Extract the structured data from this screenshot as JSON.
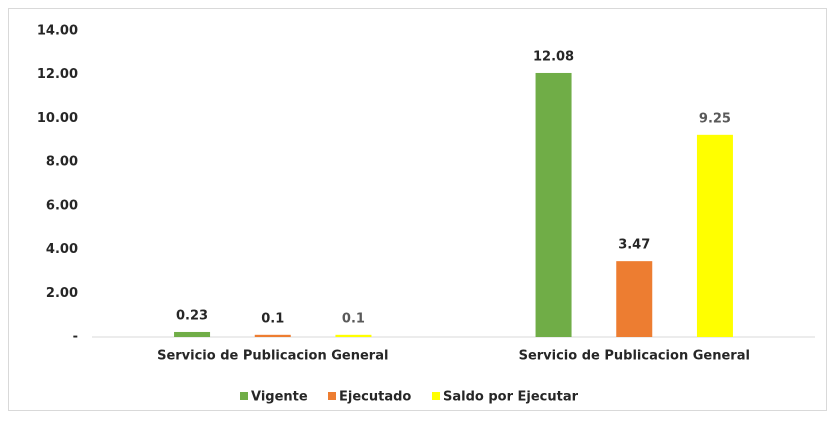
{
  "chart_data": {
    "type": "bar",
    "categories": [
      "Servicio de Publicacion General",
      "Servicio de Publicacion General"
    ],
    "series": [
      {
        "name": "Vigente",
        "color": "#70ad47",
        "values": [
          0.23,
          12.08
        ]
      },
      {
        "name": "Ejecutado",
        "color": "#ed7d31",
        "values": [
          0.1,
          3.47
        ]
      },
      {
        "name": "Saldo por Ejecutar",
        "color": "#ffff00",
        "values": [
          0.1,
          9.25
        ]
      }
    ],
    "ylim": [
      0,
      14
    ],
    "yticks": [
      {
        "value": 0,
        "label": "-"
      },
      {
        "value": 2,
        "label": "2.00"
      },
      {
        "value": 4,
        "label": "4.00"
      },
      {
        "value": 6,
        "label": "6.00"
      },
      {
        "value": 8,
        "label": "8.00"
      },
      {
        "value": 10,
        "label": "10.00"
      },
      {
        "value": 12,
        "label": "12.00"
      },
      {
        "value": 14,
        "label": "14.00"
      }
    ],
    "legend": "bottom"
  }
}
